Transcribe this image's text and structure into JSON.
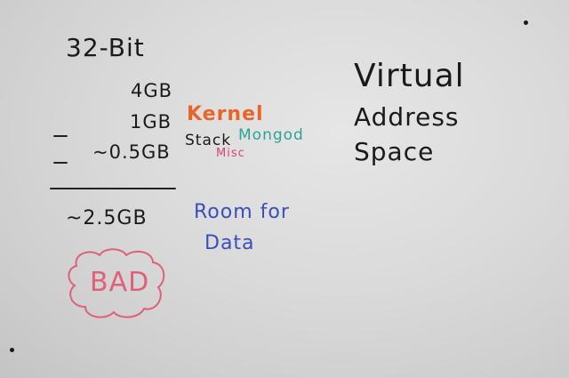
{
  "board": {
    "heading": "32-Bit",
    "mem_4gb": "4GB",
    "mem_1gb": "1GB",
    "mem_half": "~0.5GB",
    "mem_room": "~2.5GB",
    "kernel": "Kernel",
    "stack": "Stack",
    "mongod": "Mongod",
    "misc": "Misc",
    "room_for": "Room for",
    "data": "Data",
    "bad": "BAD",
    "virtual": "Virtual",
    "address": "Address",
    "space": "Space"
  },
  "colors": {
    "ink_black": "#1a1a1a",
    "kernel_orange": "#e8652a",
    "mongod_teal": "#2aa39a",
    "misc_pink": "#d8437a",
    "room_blue": "#3a4fb8",
    "bad_red": "#e0607a"
  }
}
